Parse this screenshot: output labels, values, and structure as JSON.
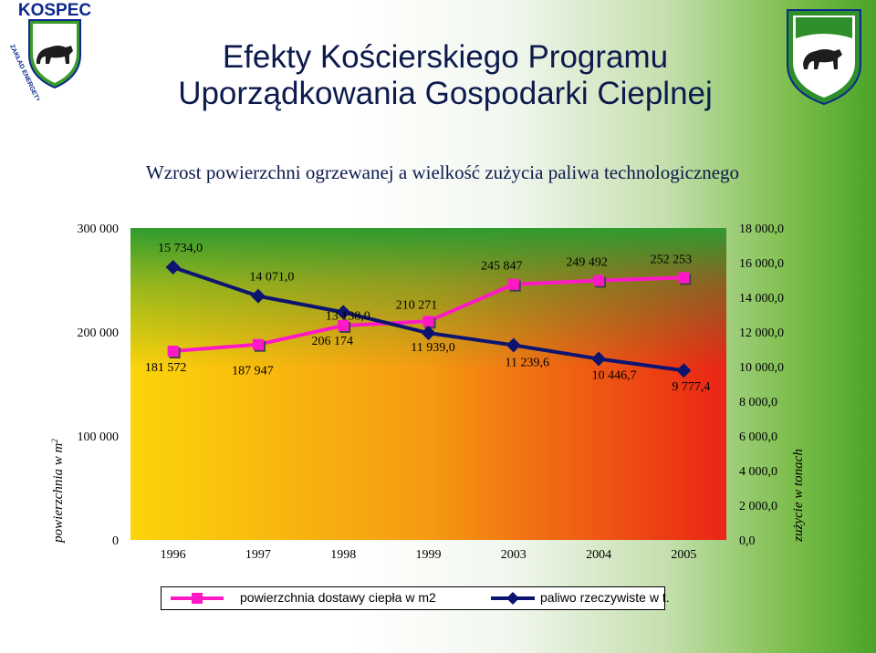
{
  "title_line1": "Efekty Kościerskiego Programu",
  "title_line2": "Uporządkowania Gospodarki Cieplnej",
  "logo_text": "KOSPEC",
  "logo_ring_text": "ZAKŁAD ENERGETYKI CIEPLNEJ",
  "chart_data": {
    "type": "line",
    "title": "Wzrost powierzchni ogrzewanej a wielkość zużycia paliwa technologicznego",
    "categories": [
      "1996",
      "1997",
      "1998",
      "1999",
      "2003",
      "2004",
      "2005"
    ],
    "ylabel_left": "powierzchnia w m2",
    "ylabel_right": "zużycie w tonach",
    "ylim_left": [
      0,
      300000
    ],
    "ylim_right": [
      0,
      18000
    ],
    "yticks_left": [
      "0",
      "100 000",
      "200 000",
      "300 000"
    ],
    "yticks_right": [
      "0,0",
      "2 000,0",
      "4 000,0",
      "6 000,0",
      "8 000,0",
      "10 000,0",
      "12 000,0",
      "14 000,0",
      "16 000,0",
      "18 000,0"
    ],
    "legend_position": "bottom",
    "grid": false,
    "series": [
      {
        "name": "powierzchnia dostawy ciepła w m2",
        "axis": "left",
        "color": "#ff19c6",
        "marker": "square",
        "values": [
          181572,
          187947,
          206174,
          210271,
          245847,
          249492,
          252253
        ],
        "labels": [
          "181 572",
          "187 947",
          "206 174",
          "210 271",
          "245 847",
          "249 492",
          "252 253"
        ]
      },
      {
        "name": "paliwo rzeczywiste w t.",
        "axis": "right",
        "color": "#0d1470",
        "marker": "diamond",
        "values": [
          15734.0,
          14071.0,
          13138.0,
          11939.0,
          11239.6,
          10446.7,
          9777.4
        ],
        "labels": [
          "15 734,0",
          "14 071,0",
          "13 138,0",
          "11 939,0",
          "11 239,6",
          "10 446,7",
          "9 777,4"
        ]
      }
    ]
  }
}
